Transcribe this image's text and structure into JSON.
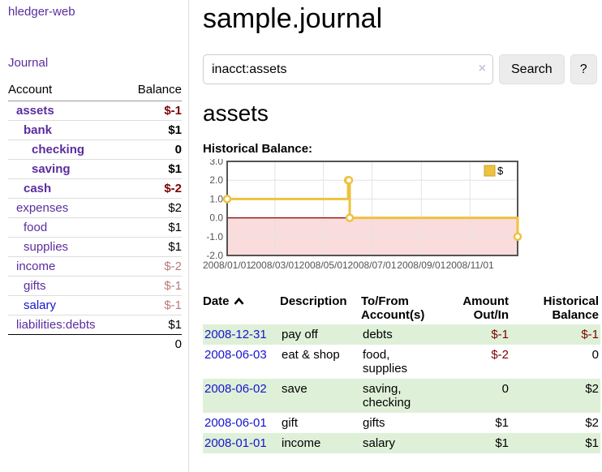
{
  "app": {
    "brand": "hledger-web",
    "nav_journal": "Journal"
  },
  "sidebar": {
    "columns": {
      "account": "Account",
      "balance": "Balance"
    },
    "accounts": [
      {
        "name": "assets",
        "depth": 1,
        "bold": true,
        "balance": "$-1",
        "balance_style": "neg"
      },
      {
        "name": "bank",
        "depth": 2,
        "bold": true,
        "balance": "$1",
        "balance_style": ""
      },
      {
        "name": "checking",
        "depth": 3,
        "bold": true,
        "balance": "0",
        "balance_style": ""
      },
      {
        "name": "saving",
        "depth": 3,
        "bold": true,
        "balance": "$1",
        "balance_style": ""
      },
      {
        "name": "cash",
        "depth": 2,
        "bold": true,
        "balance": "$-2",
        "balance_style": "neg"
      },
      {
        "name": "expenses",
        "depth": 1,
        "bold": false,
        "balance": "$2",
        "balance_style": ""
      },
      {
        "name": "food",
        "depth": 2,
        "bold": false,
        "balance": "$1",
        "balance_style": ""
      },
      {
        "name": "supplies",
        "depth": 2,
        "bold": false,
        "balance": "$1",
        "balance_style": ""
      },
      {
        "name": "income",
        "depth": 1,
        "bold": false,
        "balance": "$-2",
        "balance_style": "muted"
      },
      {
        "name": "gifts",
        "depth": 2,
        "bold": false,
        "balance": "$-1",
        "balance_style": "muted"
      },
      {
        "name": "salary",
        "depth": 2,
        "bold": false,
        "balance": "$-1",
        "balance_style": "muted",
        "link_style": "blue"
      },
      {
        "name": "liabilities:debts",
        "depth": 1,
        "bold": false,
        "balance": "$1",
        "balance_style": ""
      }
    ],
    "total": "0"
  },
  "main": {
    "title": "sample.journal",
    "search": {
      "value": "inacct:assets",
      "clear_icon": "×",
      "button_label": "Search",
      "help_label": "?"
    },
    "account_heading": "assets"
  },
  "chart_data": {
    "type": "line",
    "title": "Historical Balance:",
    "step": true,
    "series": [
      {
        "name": "$",
        "color": "#EDC240",
        "points": [
          [
            "2008-01-01",
            1
          ],
          [
            "2008-06-01",
            2
          ],
          [
            "2008-06-02",
            2
          ],
          [
            "2008-06-03",
            0
          ],
          [
            "2008-12-31",
            -1
          ]
        ]
      }
    ],
    "xlim": [
      "2008-01-01",
      "2008-12-31"
    ],
    "ylim": [
      -2,
      3
    ],
    "xticks": [
      "2008/01/01",
      "2008/03/01",
      "2008/05/01",
      "2008/07/01",
      "2008/09/01",
      "2008/11/01"
    ],
    "yticks": [
      "3.0",
      "2.0",
      "1.0",
      "0.0",
      "-1.0",
      "-2.0"
    ],
    "legend_position": "top-right",
    "grid": true,
    "grid_color": "#e3e3e3",
    "negative_band_color": "#fadcdc",
    "zero_line_color": "#8b0000",
    "border_color": "#545454",
    "tick_label_color": "#545454"
  },
  "register": {
    "headers": [
      "Date",
      "Description",
      "To/From Account(s)",
      "Amount Out/In",
      "Historical Balance"
    ],
    "stripe_color": "#dff0d8",
    "rows": [
      {
        "date": "2008-12-31",
        "description": "pay off",
        "accounts": "debts",
        "amount": "$-1",
        "amount_negative": true,
        "balance": "$-1",
        "balance_negative": true
      },
      {
        "date": "2008-06-03",
        "description": "eat & shop",
        "accounts": "food, supplies",
        "amount": "$-2",
        "amount_negative": true,
        "balance": "0",
        "balance_negative": false
      },
      {
        "date": "2008-06-02",
        "description": "save",
        "accounts": "saving, checking",
        "amount": "0",
        "amount_negative": false,
        "balance": "$2",
        "balance_negative": false
      },
      {
        "date": "2008-06-01",
        "description": "gift",
        "accounts": "gifts",
        "amount": "$1",
        "amount_negative": false,
        "balance": "$2",
        "balance_negative": false
      },
      {
        "date": "2008-01-01",
        "description": "income",
        "accounts": "salary",
        "amount": "$1",
        "amount_negative": false,
        "balance": "$1",
        "balance_negative": false
      }
    ]
  }
}
